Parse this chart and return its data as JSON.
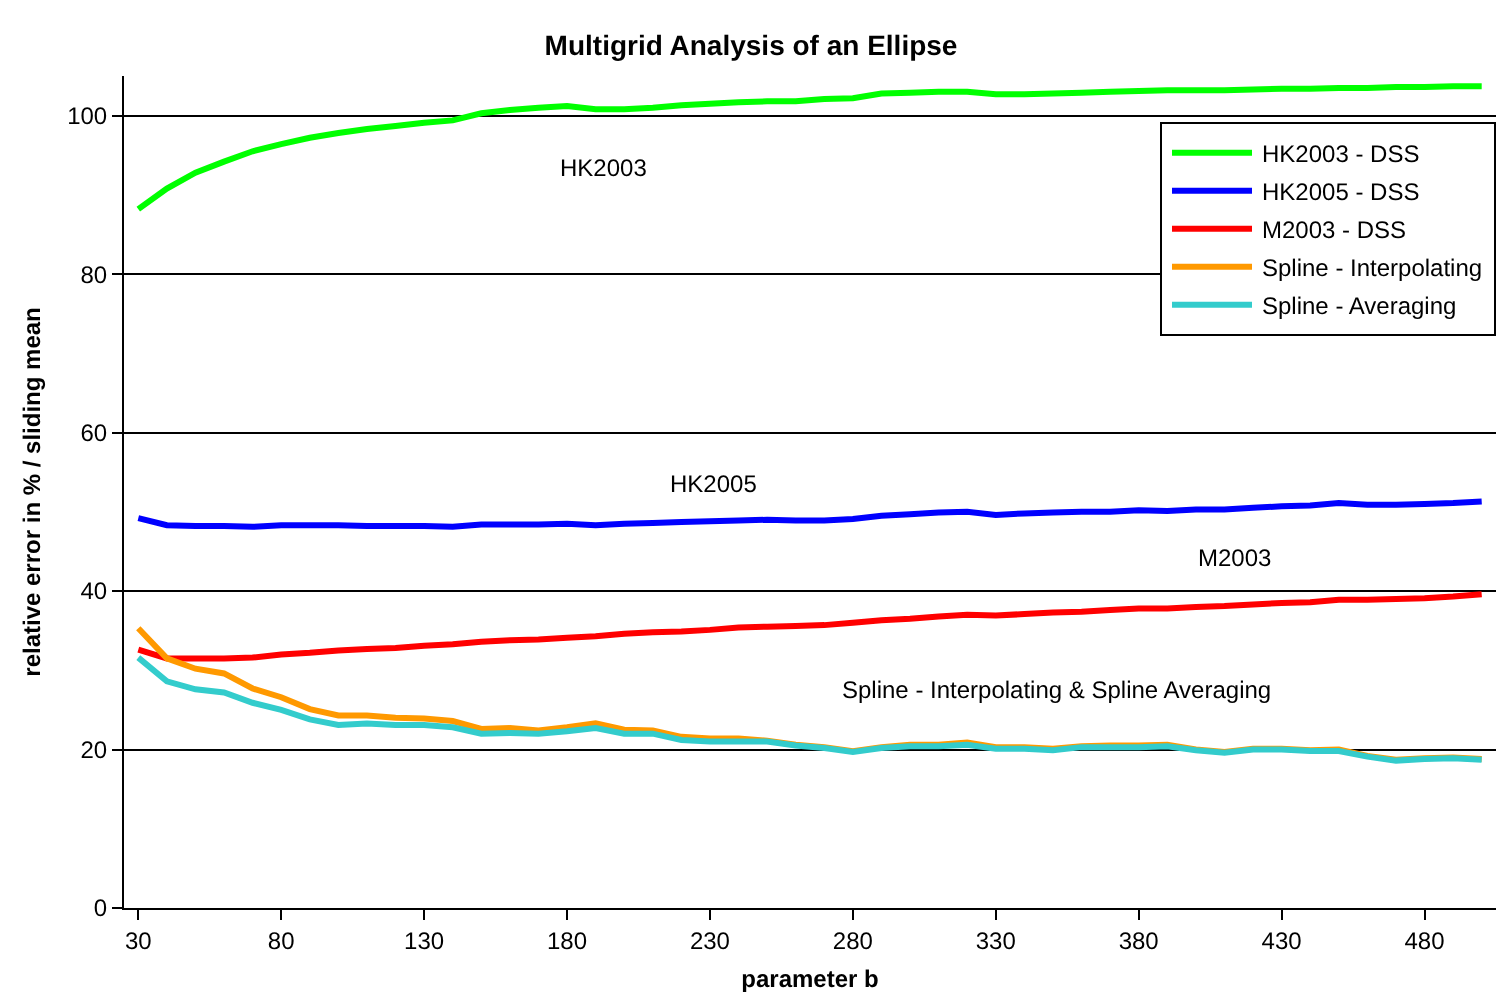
{
  "chart_data": {
    "type": "line",
    "title": "Multigrid Analysis of an Ellipse",
    "xlabel": "parameter b",
    "ylabel": "relative error in % / sliding mean",
    "x": [
      30,
      40,
      50,
      60,
      70,
      80,
      90,
      100,
      110,
      120,
      130,
      140,
      150,
      160,
      170,
      180,
      190,
      200,
      210,
      220,
      230,
      240,
      250,
      260,
      270,
      280,
      290,
      300,
      310,
      320,
      330,
      340,
      350,
      360,
      370,
      380,
      390,
      400,
      410,
      420,
      430,
      440,
      450,
      460,
      470,
      480,
      490,
      500
    ],
    "series": [
      {
        "name": "HK2003 - DSS",
        "color": "#00ff00",
        "values": [
          88.2,
          90.8,
          92.8,
          94.2,
          95.5,
          96.4,
          97.2,
          97.8,
          98.3,
          98.7,
          99.1,
          99.4,
          100.3,
          100.7,
          101.0,
          101.2,
          100.8,
          100.8,
          101.0,
          101.3,
          101.5,
          101.7,
          101.8,
          101.8,
          102.1,
          102.2,
          102.8,
          102.9,
          103.0,
          103.0,
          102.7,
          102.7,
          102.8,
          102.9,
          103.0,
          103.1,
          103.2,
          103.2,
          103.2,
          103.3,
          103.4,
          103.4,
          103.5,
          103.5,
          103.6,
          103.6,
          103.7,
          103.7
        ]
      },
      {
        "name": "HK2005 - DSS",
        "color": "#0000ff",
        "values": [
          49.2,
          48.3,
          48.2,
          48.2,
          48.1,
          48.3,
          48.3,
          48.3,
          48.2,
          48.2,
          48.2,
          48.1,
          48.4,
          48.4,
          48.4,
          48.5,
          48.3,
          48.5,
          48.6,
          48.7,
          48.8,
          48.9,
          49.0,
          48.9,
          48.9,
          49.1,
          49.5,
          49.7,
          49.9,
          50.0,
          49.6,
          49.8,
          49.9,
          50.0,
          50.0,
          50.2,
          50.1,
          50.3,
          50.3,
          50.5,
          50.7,
          50.8,
          51.1,
          50.9,
          50.9,
          51.0,
          51.1,
          51.3
        ]
      },
      {
        "name": "M2003 - DSS",
        "color": "#ff0000",
        "values": [
          32.6,
          31.5,
          31.5,
          31.5,
          31.6,
          32.0,
          32.2,
          32.5,
          32.7,
          32.8,
          33.1,
          33.3,
          33.6,
          33.8,
          33.9,
          34.1,
          34.3,
          34.6,
          34.8,
          34.9,
          35.1,
          35.4,
          35.5,
          35.6,
          35.7,
          36.0,
          36.3,
          36.5,
          36.8,
          37.0,
          36.9,
          37.1,
          37.3,
          37.4,
          37.6,
          37.8,
          37.8,
          38.0,
          38.1,
          38.3,
          38.5,
          38.6,
          38.9,
          38.9,
          39.0,
          39.1,
          39.3,
          39.6
        ]
      },
      {
        "name": "Spline - Interpolating",
        "color": "#ff9900",
        "values": [
          35.3,
          31.5,
          30.2,
          29.6,
          27.7,
          26.6,
          25.1,
          24.3,
          24.3,
          24.0,
          23.9,
          23.6,
          22.6,
          22.7,
          22.4,
          22.8,
          23.3,
          22.5,
          22.4,
          21.6,
          21.4,
          21.4,
          21.1,
          20.6,
          20.3,
          19.8,
          20.3,
          20.6,
          20.6,
          20.9,
          20.3,
          20.3,
          20.1,
          20.4,
          20.5,
          20.5,
          20.6,
          20.0,
          19.7,
          20.1,
          20.1,
          19.9,
          20.0,
          19.2,
          18.7,
          18.9,
          19.0,
          18.8
        ]
      },
      {
        "name": "Spline - Averaging",
        "color": "#33cccc",
        "values": [
          31.6,
          28.6,
          27.6,
          27.2,
          25.9,
          25.0,
          23.8,
          23.1,
          23.3,
          23.1,
          23.1,
          22.8,
          22.0,
          22.1,
          22.0,
          22.3,
          22.7,
          22.0,
          22.0,
          21.2,
          21.0,
          21.0,
          21.0,
          20.5,
          20.2,
          19.7,
          20.2,
          20.4,
          20.4,
          20.6,
          20.1,
          20.1,
          19.9,
          20.3,
          20.3,
          20.3,
          20.4,
          19.9,
          19.6,
          20.0,
          20.0,
          19.8,
          19.8,
          19.1,
          18.6,
          18.8,
          18.9,
          18.7
        ]
      }
    ],
    "annotations": [
      "HK2003",
      "HK2005",
      "M2003",
      "Spline - Interpolating & Spline Averaging"
    ],
    "xlim": [
      25,
      505
    ],
    "xticks": [
      30,
      80,
      130,
      180,
      230,
      280,
      330,
      380,
      430,
      480
    ],
    "ylim": [
      0,
      105
    ],
    "yticks": [
      0,
      20,
      40,
      60,
      80,
      100
    ],
    "grid": "y",
    "legend": "top right",
    "marker": "none",
    "line_style": "solid"
  }
}
